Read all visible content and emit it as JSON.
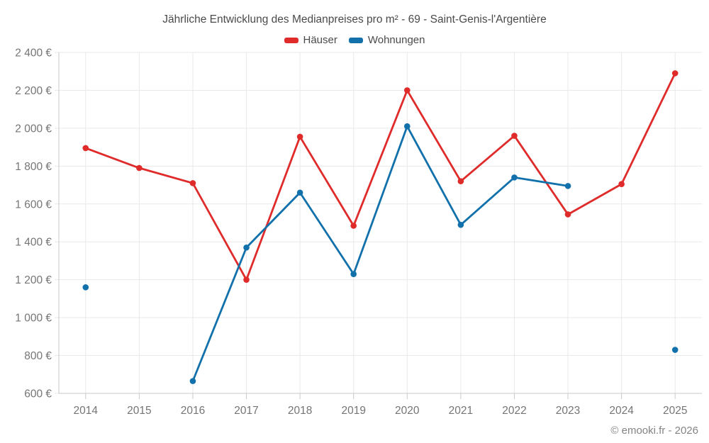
{
  "chart_data": {
    "type": "line",
    "title": "Jährliche Entwicklung des Medianpreises pro m² - 69 - Saint-Genis-l'Argentière",
    "categories": [
      "2014",
      "2015",
      "2016",
      "2017",
      "2018",
      "2019",
      "2020",
      "2021",
      "2022",
      "2023",
      "2024",
      "2025"
    ],
    "series": [
      {
        "name": "Häuser",
        "color": "#e02b2b",
        "values": [
          1895,
          1790,
          1710,
          1200,
          1955,
          1485,
          2200,
          1720,
          1960,
          1545,
          1705,
          2290
        ]
      },
      {
        "name": "Wohnungen",
        "color": "#1271ab",
        "values": [
          1160,
          null,
          665,
          1370,
          1660,
          1230,
          2010,
          1490,
          1740,
          1695,
          null,
          830
        ]
      }
    ],
    "ylim": [
      600,
      2400
    ],
    "ytick_step": 200,
    "ytick_labels": [
      "600 €",
      "800 €",
      "1 000 €",
      "1 200 €",
      "1 400 €",
      "1 600 €",
      "1 800 €",
      "2 000 €",
      "2 200 €",
      "2 400 €"
    ],
    "xlabel": "",
    "ylabel": "",
    "grid": true,
    "legend_position": "top"
  },
  "footer": {
    "copyright": "© emooki.fr - 2026"
  }
}
